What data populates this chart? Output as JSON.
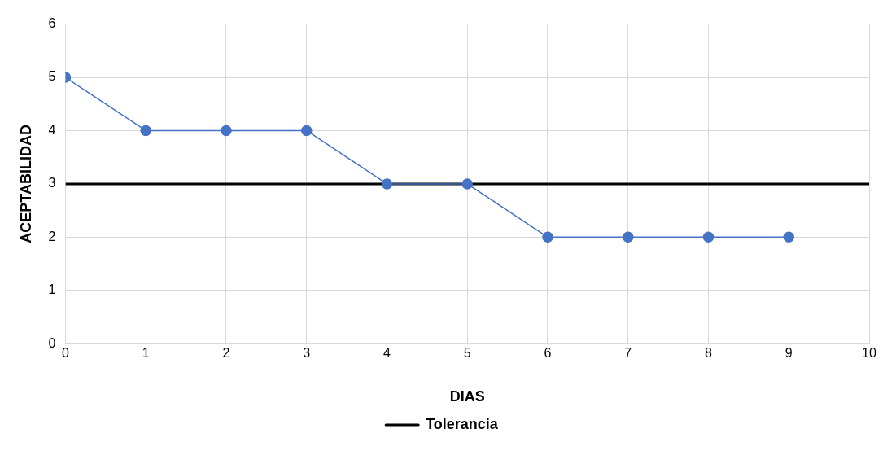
{
  "chart_data": {
    "type": "line",
    "xlabel": "DIAS",
    "ylabel": "ACEPTABILIDAD",
    "xlim": [
      0,
      10
    ],
    "xticks": [
      0,
      1,
      2,
      3,
      4,
      5,
      6,
      7,
      8,
      9,
      10
    ],
    "ylim": [
      0,
      6
    ],
    "yticks": [
      0,
      1,
      2,
      3,
      4,
      5,
      6
    ],
    "grid": true,
    "legend": "bottom",
    "series": [
      {
        "color": "#4472c4",
        "marker": "circle",
        "x": [
          0,
          1,
          2,
          3,
          4,
          5,
          6,
          7,
          8,
          9
        ],
        "values": [
          5,
          4,
          4,
          4,
          3,
          3,
          2,
          2,
          2,
          2
        ]
      },
      {
        "name": "Tolerancia",
        "color": "#000000",
        "marker": "none",
        "x": [
          0,
          10
        ],
        "values": [
          3,
          3
        ]
      }
    ]
  }
}
